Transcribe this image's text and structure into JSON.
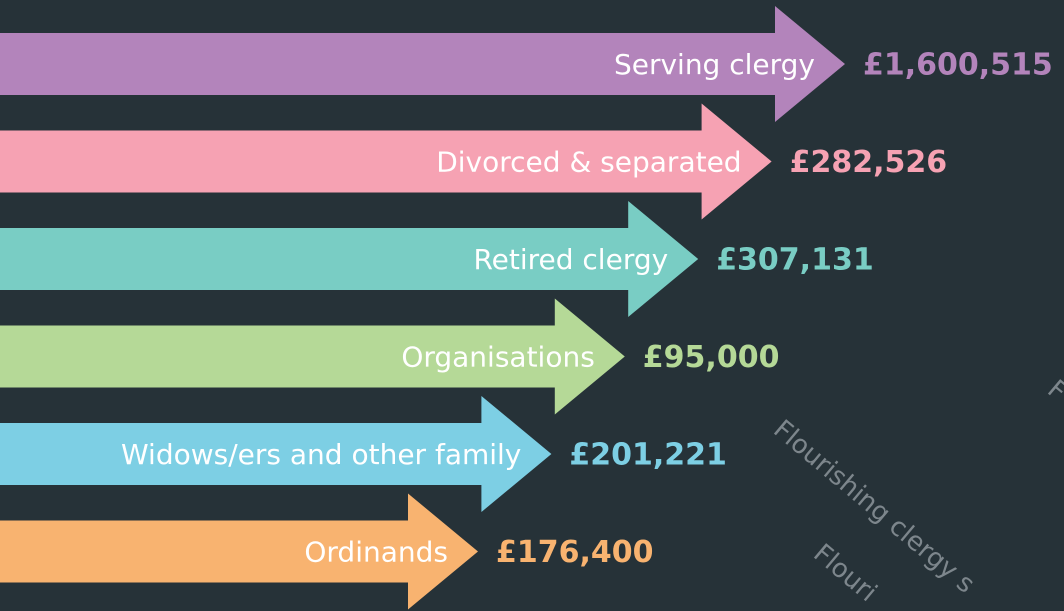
{
  "items": [
    {
      "label": "Serving clergy",
      "amount": "£1,600,515",
      "color": "#b384bb"
    },
    {
      "label": "Divorced & separated",
      "amount": "£282,526",
      "color": "#f6a2b3"
    },
    {
      "label": "Retired clergy",
      "amount": "£307,131",
      "color": "#79cdc4"
    },
    {
      "label": "Organisations",
      "amount": "£95,000",
      "color": "#b5d997"
    },
    {
      "label": "Widows/ers and other family",
      "amount": "£201,221",
      "color": "#7dcfe4"
    },
    {
      "label": "Ordinands",
      "amount": "£176,400",
      "color": "#f8b370"
    }
  ],
  "watermarks": [
    "Flourishing clergy s",
    "Flouri",
    "F"
  ]
}
